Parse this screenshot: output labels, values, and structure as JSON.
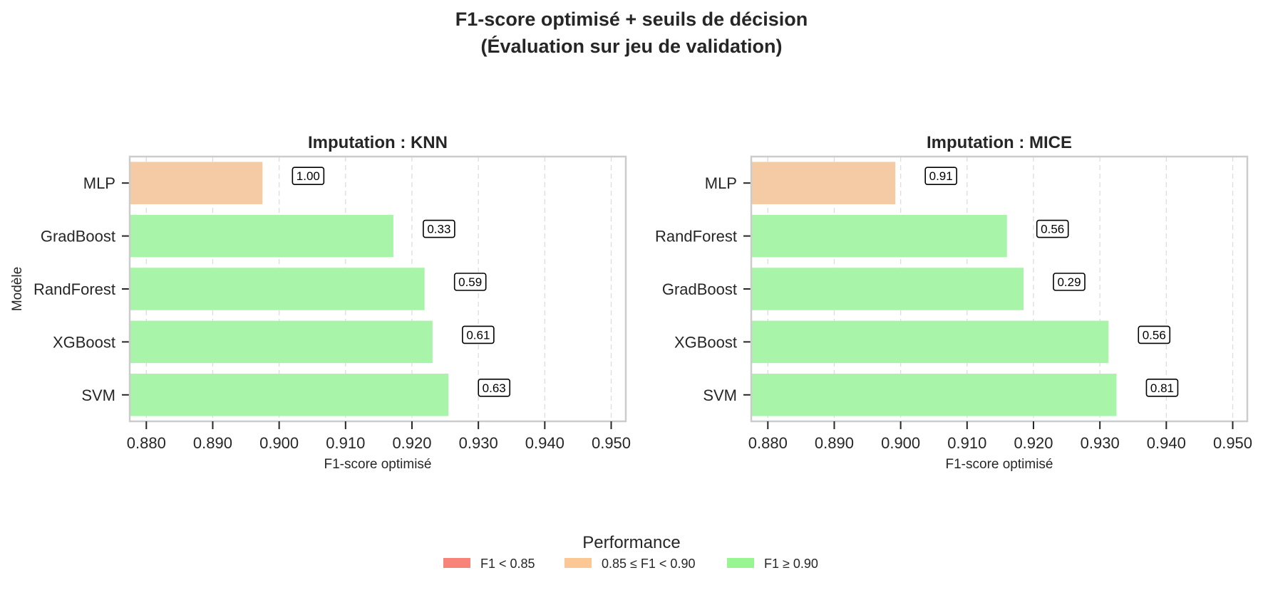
{
  "figure": {
    "title_line1": "F1-score optimisé + seuils de décision",
    "title_line2": "(Évaluation sur jeu de validation)"
  },
  "legend": {
    "title": "Performance",
    "items": [
      {
        "label": "F1 < 0.85",
        "color": "#f88379"
      },
      {
        "label": "0.85 ≤ F1 < 0.90",
        "color": "#fbc895"
      },
      {
        "label": "F1 ≥ 0.90",
        "color": "#98f592"
      }
    ]
  },
  "colors": {
    "low": "#f88379",
    "mid": "#f4cba5",
    "high": "#a8f4a8",
    "grid": "#dddddd",
    "spine": "#cccccc",
    "text": "#262626"
  },
  "chart_data": [
    {
      "type": "bar",
      "orientation": "horizontal",
      "title": "Imputation : KNN",
      "xlabel": "F1-score optimisé",
      "ylabel": "Modèle",
      "xlim": [
        0.8775,
        0.9522
      ],
      "xticks": [
        "0.880",
        "0.890",
        "0.900",
        "0.910",
        "0.920",
        "0.930",
        "0.940",
        "0.950"
      ],
      "xtick_values": [
        0.88,
        0.89,
        0.9,
        0.91,
        0.92,
        0.93,
        0.94,
        0.95
      ],
      "grid": "x-dashed",
      "categories": [
        "MLP",
        "GradBoost",
        "RandForest",
        "XGBoost",
        "SVM"
      ],
      "values": [
        0.8975,
        0.9172,
        0.9219,
        0.9231,
        0.9255
      ],
      "thresholds": [
        "1.00",
        "0.33",
        "0.59",
        "0.61",
        "0.63"
      ],
      "performance": [
        "mid",
        "high",
        "high",
        "high",
        "high"
      ]
    },
    {
      "type": "bar",
      "orientation": "horizontal",
      "title": "Imputation : MICE",
      "xlabel": "F1-score optimisé",
      "ylabel": "",
      "xlim": [
        0.8775,
        0.9522
      ],
      "xticks": [
        "0.880",
        "0.890",
        "0.900",
        "0.910",
        "0.920",
        "0.930",
        "0.940",
        "0.950"
      ],
      "xtick_values": [
        0.88,
        0.89,
        0.9,
        0.91,
        0.92,
        0.93,
        0.94,
        0.95
      ],
      "grid": "x-dashed",
      "categories": [
        "MLP",
        "RandForest",
        "GradBoost",
        "XGBoost",
        "SVM"
      ],
      "values": [
        0.8992,
        0.916,
        0.9185,
        0.9313,
        0.9325
      ],
      "thresholds": [
        "0.91",
        "0.56",
        "0.29",
        "0.56",
        "0.81"
      ],
      "performance": [
        "mid",
        "high",
        "high",
        "high",
        "high"
      ]
    }
  ]
}
